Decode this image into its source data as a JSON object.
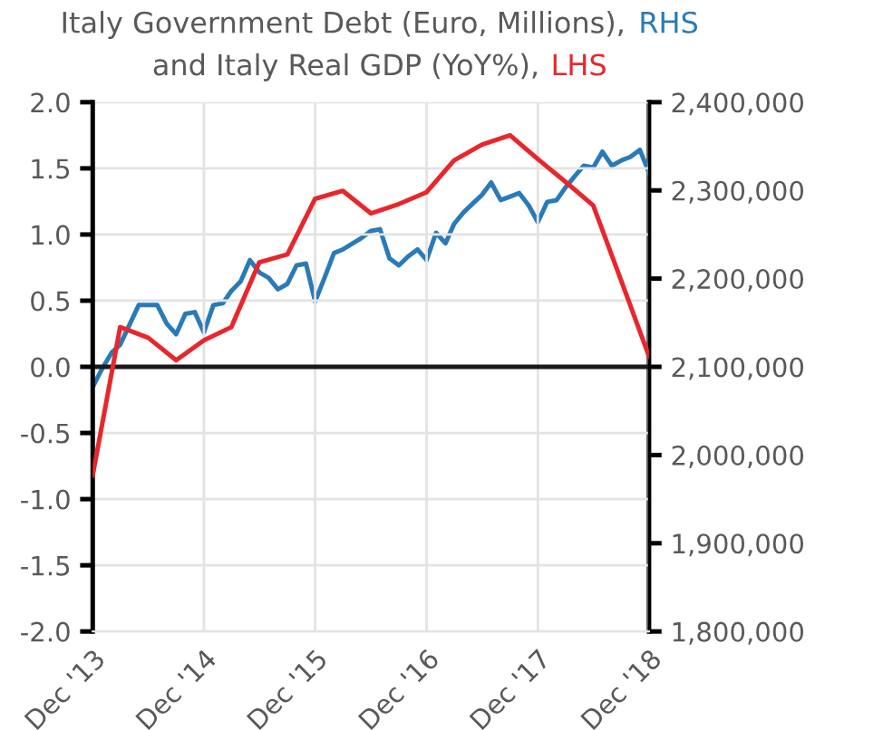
{
  "chart_data": {
    "type": "line",
    "title": "Italy Government Debt (Euro, Millions), RHS\nand Italy Real GDP (YoY%), LHS",
    "series": [
      {
        "color": "#e8262b",
        "axis": "y",
        "x": [
          "2013-12",
          "2014-03",
          "2014-06",
          "2014-09",
          "2014-12",
          "2015-03",
          "2015-06",
          "2015-09",
          "2015-12",
          "2016-03",
          "2016-06",
          "2016-09",
          "2016-12",
          "2017-03",
          "2017-06",
          "2017-09",
          "2017-12",
          "2018-03",
          "2018-06",
          "2018-09",
          "2018-12"
        ],
        "values": [
          -0.82,
          0.3,
          0.22,
          0.05,
          0.2,
          0.3,
          0.79,
          0.85,
          1.27,
          1.33,
          1.16,
          1.23,
          1.32,
          1.56,
          1.68,
          1.75,
          1.57,
          1.4,
          1.22,
          0.65,
          0.08
        ]
      },
      {
        "color": "#2a7ab8",
        "axis": "y2",
        "x": [
          "2013-12",
          "2014-01",
          "2014-02",
          "2014-03",
          "2014-05",
          "2014-06",
          "2014-07",
          "2014-08",
          "2014-09",
          "2014-10",
          "2014-11",
          "2014-12",
          "2015-01",
          "2015-02",
          "2015-03",
          "2015-04",
          "2015-05",
          "2015-06",
          "2015-07",
          "2015-08",
          "2015-09",
          "2015-10",
          "2015-11",
          "2015-12",
          "2016-01",
          "2016-02",
          "2016-03",
          "2016-05",
          "2016-06",
          "2016-07",
          "2016-08",
          "2016-09",
          "2016-10",
          "2016-11",
          "2016-12",
          "2017-01",
          "2017-02",
          "2017-03",
          "2017-04",
          "2017-05",
          "2017-06",
          "2017-07",
          "2017-08",
          "2017-09",
          "2017-10",
          "2017-11",
          "2017-12",
          "2018-01",
          "2018-02",
          "2018-03",
          "2018-04",
          "2018-05",
          "2018-06",
          "2018-07",
          "2018-08",
          "2018-09",
          "2018-10",
          "2018-11",
          "2018-12"
        ],
        "values": [
          2077000,
          2098000,
          2116000,
          2125000,
          2170000,
          2170000,
          2170000,
          2149000,
          2137000,
          2160000,
          2162000,
          2139000,
          2170000,
          2172000,
          2186000,
          2197000,
          2221000,
          2207000,
          2201000,
          2188000,
          2194000,
          2215000,
          2217000,
          2174000,
          2201000,
          2229000,
          2233000,
          2246000,
          2254000,
          2256000,
          2223000,
          2215000,
          2225000,
          2233000,
          2221000,
          2252000,
          2240000,
          2262000,
          2275000,
          2285000,
          2295000,
          2309000,
          2289000,
          2293000,
          2297000,
          2283000,
          2264000,
          2287000,
          2289000,
          2303000,
          2316000,
          2328000,
          2326000,
          2344000,
          2328000,
          2334000,
          2338000,
          2346000,
          2320000
        ]
      }
    ],
    "xlim": [
      "2013-12",
      "2018-12"
    ],
    "xticks": [
      {
        "value": "2013-12",
        "label": "Dec '13"
      },
      {
        "value": "2014-12",
        "label": "Dec '14"
      },
      {
        "value": "2015-12",
        "label": "Dec '15"
      },
      {
        "value": "2016-12",
        "label": "Dec '16"
      },
      {
        "value": "2017-12",
        "label": "Dec '17"
      },
      {
        "value": "2018-12",
        "label": "Dec '18"
      }
    ],
    "ylim": [
      -2.0,
      2.0
    ],
    "yticks": [
      {
        "value": -2.0,
        "label": "-2.0"
      },
      {
        "value": -1.5,
        "label": "-1.5"
      },
      {
        "value": -1.0,
        "label": "-1.0"
      },
      {
        "value": -0.5,
        "label": "-0.5"
      },
      {
        "value": 0.0,
        "label": "0.0"
      },
      {
        "value": 0.5,
        "label": "0.5"
      },
      {
        "value": 1.0,
        "label": "1.0"
      },
      {
        "value": 1.5,
        "label": "1.5"
      },
      {
        "value": 2.0,
        "label": "2.0"
      }
    ],
    "y2lim": [
      1800000,
      2400000
    ],
    "y2ticks": [
      {
        "value": 1800000,
        "label": "1,800,000"
      },
      {
        "value": 1900000,
        "label": "1,900,000"
      },
      {
        "value": 2000000,
        "label": "2,000,000"
      },
      {
        "value": 2100000,
        "label": "2,100,000"
      },
      {
        "value": 2200000,
        "label": "2,200,000"
      },
      {
        "value": 2300000,
        "label": "2,300,000"
      },
      {
        "value": 2400000,
        "label": "2,400,000"
      }
    ],
    "ref_lines": [
      {
        "axis": "y",
        "value": 0,
        "color": "#1a1a1a"
      }
    ],
    "grid": true,
    "legend": false,
    "marker": "none",
    "line_style": "solid"
  }
}
